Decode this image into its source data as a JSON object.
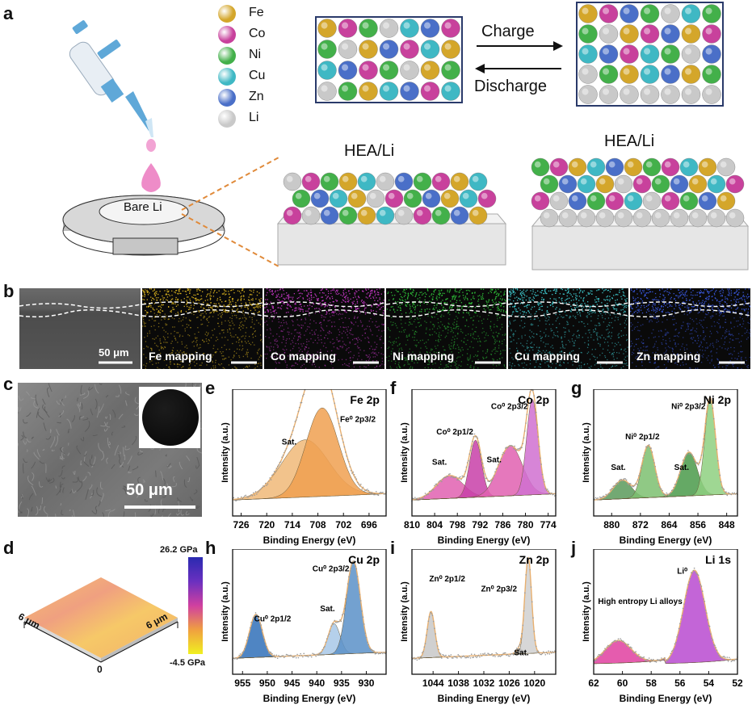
{
  "panel_letters": {
    "a": "a",
    "b": "b",
    "c": "c",
    "d": "d",
    "e": "e",
    "f": "f",
    "g": "g",
    "h": "h",
    "i": "i",
    "j": "j"
  },
  "legend": [
    {
      "label": "Fe",
      "color": "#d4a62a"
    },
    {
      "label": "Co",
      "color": "#c8419c"
    },
    {
      "label": "Ni",
      "color": "#43b04a"
    },
    {
      "label": "Cu",
      "color": "#3fb8c4"
    },
    {
      "label": "Zn",
      "color": "#4a6fc8"
    },
    {
      "label": "Li",
      "color": "#c9c9c9"
    }
  ],
  "schematic": {
    "charge": "Charge",
    "discharge": "Discharge",
    "hea_left": "HEA/Li",
    "hea_right": "HEA/Li",
    "bare_li": "Bare Li"
  },
  "panel_b": {
    "scale": "50 μm",
    "maps": [
      {
        "label": "Fe mapping",
        "color": "#d9b21f"
      },
      {
        "label": "Co mapping",
        "color": "#c437c4"
      },
      {
        "label": "Ni mapping",
        "color": "#2fc43a"
      },
      {
        "label": "Cu mapping",
        "color": "#3ecad0"
      },
      {
        "label": "Zn mapping",
        "color": "#3a58e0"
      }
    ]
  },
  "panel_c": {
    "scale": "50 μm"
  },
  "panel_d": {
    "top": "26.2 GPa",
    "bottom": "-4.5 GPa",
    "x_label": "6 μm",
    "y_label": "6 μm",
    "origin": "0"
  },
  "chart_data": [
    {
      "panel": "e",
      "type": "line",
      "title": "Fe 2p",
      "xlabel": "Binding Energy (eV)",
      "ylabel": "Intensity (a.u.)",
      "xlim": [
        728,
        692
      ],
      "ticks": [
        "726",
        "720",
        "714",
        "708",
        "702",
        "696"
      ],
      "annotations": [
        "Sat.",
        "Fe⁰ 2p3/2"
      ],
      "peaks": [
        {
          "name": "Sat.",
          "center": 711,
          "height": 0.55,
          "width": 5.5,
          "color": "#f0b878"
        },
        {
          "name": "Fe⁰ 2p3/2",
          "center": 707,
          "height": 0.85,
          "width": 3.8,
          "color": "#f0a050"
        }
      ]
    },
    {
      "panel": "f",
      "type": "line",
      "title": "Co 2p",
      "xlabel": "Binding Energy (eV)",
      "ylabel": "Intensity (a.u.)",
      "xlim": [
        810,
        772
      ],
      "ticks": [
        "810",
        "804",
        "798",
        "792",
        "786",
        "780",
        "774"
      ],
      "annotations": [
        "Sat.",
        "Co⁰ 2p1/2",
        "Sat.",
        "Co⁰ 2p3/2"
      ],
      "peaks": [
        {
          "name": "Sat.",
          "center": 800,
          "height": 0.22,
          "width": 3.5,
          "color": "#e060b0"
        },
        {
          "name": "Co⁰ 2p1/2",
          "center": 793.2,
          "height": 0.55,
          "width": 1.6,
          "color": "#c840a8"
        },
        {
          "name": "Sat.",
          "center": 784,
          "height": 0.48,
          "width": 3.2,
          "color": "#e060b0"
        },
        {
          "name": "Co⁰ 2p3/2",
          "center": 778.2,
          "height": 0.92,
          "width": 1.5,
          "color": "#d070d0"
        }
      ]
    },
    {
      "panel": "g",
      "type": "line",
      "title": "Ni 2p",
      "xlabel": "Binding Energy (eV)",
      "ylabel": "Intensity (a.u.)",
      "xlim": [
        885,
        845
      ],
      "ticks": [
        "880",
        "872",
        "864",
        "856",
        "848"
      ],
      "annotations": [
        "Sat.",
        "Ni⁰ 2p1/2",
        "Sat.",
        "Ni⁰ 2p3/2"
      ],
      "peaks": [
        {
          "name": "Sat.",
          "center": 877,
          "height": 0.18,
          "width": 2.5,
          "color": "#5a9a5a"
        },
        {
          "name": "Ni⁰ 2p1/2",
          "center": 869.8,
          "height": 0.5,
          "width": 1.8,
          "color": "#7cc070"
        },
        {
          "name": "Sat.",
          "center": 858.5,
          "height": 0.42,
          "width": 2.3,
          "color": "#4a9a4a"
        },
        {
          "name": "Ni⁰ 2p3/2",
          "center": 852.6,
          "height": 0.92,
          "width": 1.5,
          "color": "#8ed080"
        }
      ]
    },
    {
      "panel": "h",
      "type": "line",
      "title": "Cu 2p",
      "xlabel": "Binding Energy (eV)",
      "ylabel": "Intensity (a.u.)",
      "xlim": [
        957,
        926
      ],
      "ticks": [
        "955",
        "950",
        "945",
        "940",
        "935",
        "930"
      ],
      "annotations": [
        "Cu⁰ 2p1/2",
        "Sat.",
        "Cu⁰ 2p3/2"
      ],
      "peaks": [
        {
          "name": "Cu⁰ 2p1/2",
          "center": 952.3,
          "height": 0.42,
          "width": 1.3,
          "color": "#3070b8"
        },
        {
          "name": "Sat.",
          "center": 936.5,
          "height": 0.3,
          "width": 1.2,
          "color": "#a8c8e8"
        },
        {
          "name": "Cu⁰ 2p3/2",
          "center": 932.6,
          "height": 0.9,
          "width": 1.4,
          "color": "#5a90c8"
        }
      ]
    },
    {
      "panel": "i",
      "type": "line",
      "title": "Zn 2p",
      "xlabel": "Binding Energy (eV)",
      "ylabel": "Intensity (a.u.)",
      "xlim": [
        1049,
        1015
      ],
      "ticks": [
        "1044",
        "1038",
        "1032",
        "1026",
        "1020"
      ],
      "annotations": [
        "Zn⁰ 2p1/2",
        "Zn⁰ 2p3/2",
        "Sat."
      ],
      "peaks": [
        {
          "name": "Zn⁰ 2p1/2",
          "center": 1044.5,
          "height": 0.45,
          "width": 0.9,
          "color": "#c8c8c8"
        },
        {
          "name": "Sat.",
          "center": 1023.5,
          "height": 0.05,
          "width": 0.8,
          "color": "#606060"
        },
        {
          "name": "Zn⁰ 2p3/2",
          "center": 1021.5,
          "height": 0.93,
          "width": 0.8,
          "color": "#d0d0d0"
        }
      ]
    },
    {
      "panel": "j",
      "type": "line",
      "title": "Li 1s",
      "xlabel": "Binding Energy (eV)",
      "ylabel": "Intensity (a.u.)",
      "xlim": [
        62,
        52
      ],
      "ticks": [
        "62",
        "60",
        "58",
        "56",
        "54",
        "52"
      ],
      "annotations": [
        "High entropy Li alloys",
        "Li⁰"
      ],
      "peaks": [
        {
          "name": "High entropy Li alloys",
          "center": 60.3,
          "height": 0.22,
          "width": 0.9,
          "color": "#e040a0"
        },
        {
          "name": "Li⁰",
          "center": 55.0,
          "height": 0.9,
          "width": 0.75,
          "color": "#b84ad0"
        }
      ]
    }
  ]
}
